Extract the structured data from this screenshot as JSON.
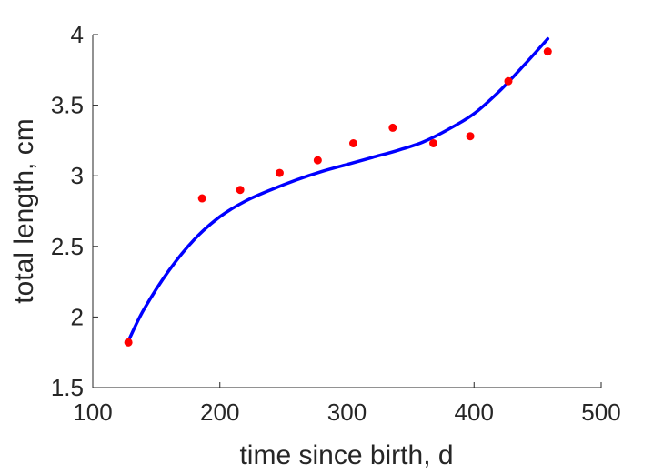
{
  "chart_data": {
    "type": "scatter",
    "xlabel": "time since birth, d",
    "ylabel": "total length, cm",
    "xlim": [
      100,
      500
    ],
    "ylim": [
      1.5,
      4
    ],
    "xticks": [
      100,
      200,
      300,
      400,
      500
    ],
    "yticks": [
      1.5,
      2,
      2.5,
      3,
      3.5,
      4
    ],
    "xtick_labels": [
      "100",
      "200",
      "300",
      "400",
      "500"
    ],
    "ytick_labels": [
      "1.5",
      "2",
      "2.5",
      "3",
      "3.5",
      "4"
    ],
    "grid": false,
    "colors": {
      "points": "#ff0000",
      "fit_line": "#0000ff",
      "axes": "#262626"
    },
    "series": [
      {
        "kind": "points",
        "x": [
          128,
          186,
          216,
          247,
          277,
          305,
          336,
          368,
          397,
          427,
          458
        ],
        "y": [
          1.82,
          2.84,
          2.9,
          3.02,
          3.11,
          3.23,
          3.34,
          3.23,
          3.28,
          3.67,
          3.88
        ]
      },
      {
        "kind": "line",
        "x": [
          128,
          140,
          160,
          180,
          200,
          220,
          240,
          260,
          280,
          300,
          320,
          340,
          360,
          380,
          400,
          420,
          440,
          458
        ],
        "y": [
          1.83,
          2.05,
          2.33,
          2.55,
          2.71,
          2.82,
          2.9,
          2.97,
          3.03,
          3.08,
          3.13,
          3.18,
          3.24,
          3.33,
          3.44,
          3.6,
          3.79,
          3.97
        ]
      }
    ]
  }
}
